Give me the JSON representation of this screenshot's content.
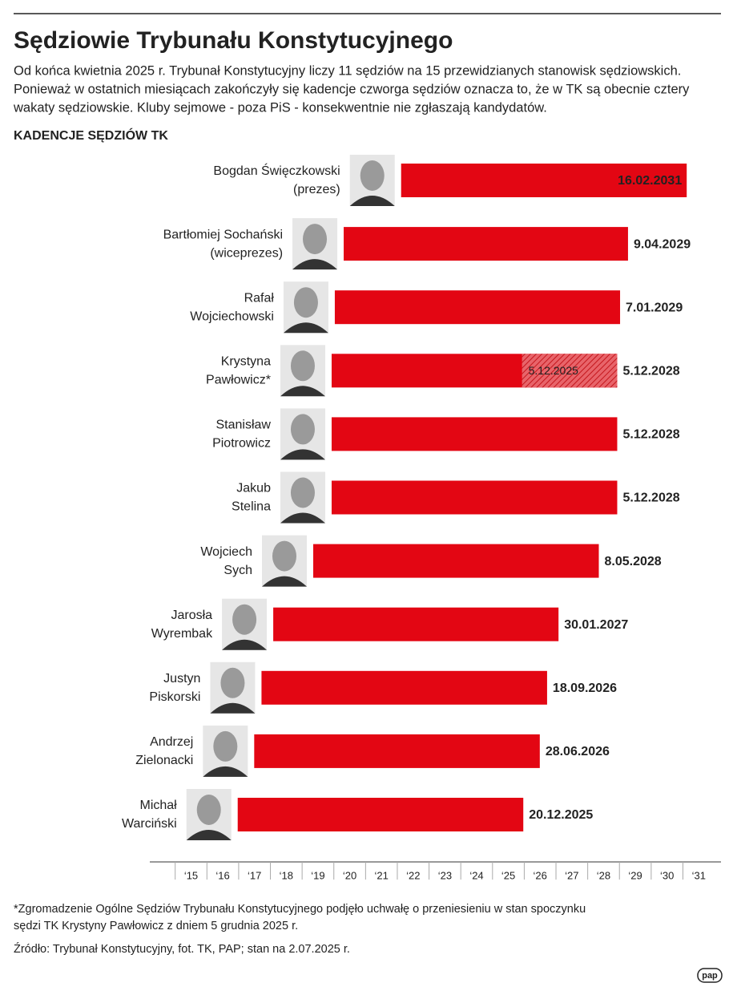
{
  "header": {
    "title": "Sędziowie Trybunału Konstytucyjnego",
    "description": [
      "Od końca kwietnia 2025 r. Trybunał Konstytucyjny liczy 11 sędziów na 15 przewidzianych stanowisk sędziowskich.",
      "Ponieważ w ostatnich miesiącach zakończyły się kadencje czworga sędziów oznacza to, że w TK są obecnie cztery",
      "wakaty sędziowskie. Kluby sejmowe - poza PiS - konsekwentnie nie zgłaszają kandydatów."
    ]
  },
  "chart_data": {
    "type": "range-bar",
    "title": "KADENCJE SĘDZIÓW TK",
    "categories": [
      [
        "Bogdan Święczkowski",
        "(prezes)"
      ],
      [
        "Bartłomiej Sochański",
        "(wiceprezes)"
      ],
      [
        "Rafał",
        "Wojciechowski"
      ],
      [
        "Krystyna",
        "Pawłowicz*"
      ],
      [
        "Stanisław",
        "Piotrowicz"
      ],
      [
        "Jakub",
        "Stelina"
      ],
      [
        "Wojciech",
        "Sych"
      ],
      [
        "Jarosła",
        "Wyrembak"
      ],
      [
        "Justyn",
        "Piskorski"
      ],
      [
        "Andrzej",
        "Zielonacki"
      ],
      [
        "Michał",
        "Warciński"
      ]
    ],
    "starts": [
      2022.12,
      2020.31,
      2020.03,
      2019.93,
      2019.93,
      2019.93,
      2019.35,
      2018.09,
      2017.72,
      2017.49,
      2016.97
    ],
    "values": [
      2031.12,
      2029.27,
      2029.02,
      2028.93,
      2028.93,
      2028.93,
      2028.35,
      2027.08,
      2026.72,
      2026.49,
      2025.97
    ],
    "value_labels": [
      "16.02.2031",
      "9.04.2029",
      "7.01.2029",
      "5.12.2028",
      "5.12.2028",
      "5.12.2028",
      "8.05.2028",
      "30.01.2027",
      "18.09.2026",
      "28.06.2026",
      "20.12.2025"
    ],
    "hatch": {
      "values": [
        null,
        null,
        null,
        2025.93,
        null,
        null,
        null,
        null,
        null,
        null,
        null
      ],
      "value_labels": [
        null,
        null,
        null,
        "5.12.2025",
        null,
        null,
        null,
        null,
        null,
        null,
        null
      ]
    },
    "color": "#e30613",
    "xlim": [
      2014.2,
      2032.2
    ],
    "xticks": [
      {
        "value": 2015,
        "label": "‘15"
      },
      {
        "value": 2016,
        "label": "‘16"
      },
      {
        "value": 2017,
        "label": "‘17"
      },
      {
        "value": 2018,
        "label": "‘18"
      },
      {
        "value": 2019,
        "label": "‘19"
      },
      {
        "value": 2020,
        "label": "‘20"
      },
      {
        "value": 2021,
        "label": "‘21"
      },
      {
        "value": 2022,
        "label": "‘22"
      },
      {
        "value": 2023,
        "label": "‘23"
      },
      {
        "value": 2024,
        "label": "‘24"
      },
      {
        "value": 2025,
        "label": "‘25"
      },
      {
        "value": 2026,
        "label": "‘26"
      },
      {
        "value": 2027,
        "label": "‘27"
      },
      {
        "value": 2028,
        "label": "‘28"
      },
      {
        "value": 2029,
        "label": "‘29"
      },
      {
        "value": 2030,
        "label": "‘30"
      },
      {
        "value": 2031,
        "label": "‘31"
      }
    ]
  },
  "footer": {
    "note": [
      "*Zgromadzenie Ogólne Sędziów Trybunału Konstytucyjnego podjęło uchwałę o przeniesieniu w stan spoczynku",
      "sędzi TK Krystyny Pawłowicz z dniem 5 grudnia 2025 r."
    ],
    "source": "Źródło: Trybunał Konstytucyjny, fot. TK, PAP; stan na 2.07.2025 r.",
    "logo": "pap"
  }
}
